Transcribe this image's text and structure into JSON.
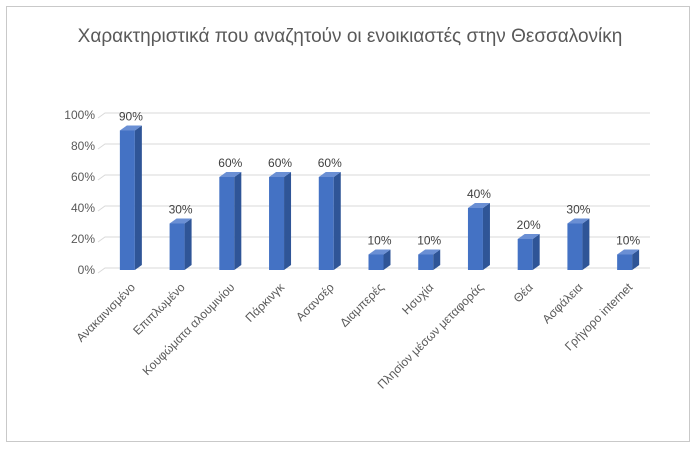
{
  "chart_data": {
    "type": "bar",
    "title": "Χαρακτηριστικά που αναζητούν οι ενοικιαστές στην Θεσσαλονίκη",
    "categories": [
      "Ανακαινισμένο",
      "Επιπλωμένο",
      "Κουφώματα αλουμινίου",
      "Πάρκινγκ",
      "Ασανσέρ",
      "Διαμπερές",
      "Ησυχία",
      "Πλησίον μέσων μεταφοράς",
      "Θέα",
      "Ασφάλεια",
      "Γρήγορο internet"
    ],
    "values": [
      90,
      30,
      60,
      60,
      60,
      10,
      10,
      40,
      20,
      30,
      10
    ],
    "data_labels": [
      "90%",
      "30%",
      "60%",
      "60%",
      "60%",
      "10%",
      "10%",
      "40%",
      "20%",
      "30%",
      "10%"
    ],
    "y_ticks": [
      {
        "value": 0,
        "label": "0%"
      },
      {
        "value": 20,
        "label": "20%"
      },
      {
        "value": 40,
        "label": "40%"
      },
      {
        "value": 60,
        "label": "60%"
      },
      {
        "value": 80,
        "label": "80%"
      },
      {
        "value": 100,
        "label": "100%"
      }
    ],
    "ylim": [
      0,
      100
    ],
    "grid": true,
    "bar_style": "3d-column",
    "colors": {
      "bar_front": "#4472C4",
      "bar_side": "#2F5597",
      "bar_top": "#6A8FD4",
      "grid": "#d9d9d9",
      "text": "#595959"
    }
  }
}
